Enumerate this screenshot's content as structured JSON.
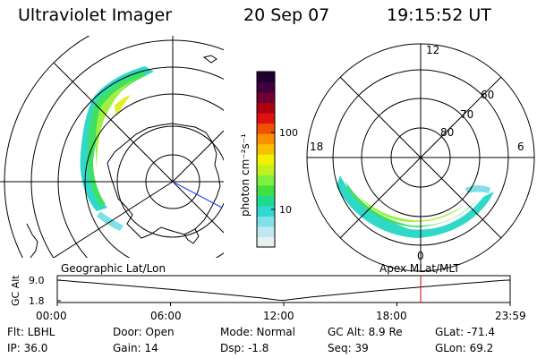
{
  "header": {
    "title": "Ultraviolet Imager",
    "date": "20 Sep 07",
    "time": "19:15:52 UT"
  },
  "colorbar": {
    "unit_label": "photon cm⁻²s⁻¹",
    "tick_labels": [
      "100",
      "10"
    ],
    "colors": [
      "#e8f0f0",
      "#c0e8f0",
      "#80e0e8",
      "#30d8d0",
      "#20d890",
      "#40e040",
      "#80f040",
      "#c0f020",
      "#f0f000",
      "#f8c000",
      "#f89000",
      "#f05000",
      "#e01010",
      "#b00010",
      "#700030",
      "#400040",
      "#200030"
    ]
  },
  "left_map": {
    "label": "Geographic Lat/Lon"
  },
  "right_map": {
    "label": "Apex  MLat/MLT",
    "mlt_labels": {
      "top": "12",
      "bottom": "0",
      "left": "18",
      "right": "6"
    },
    "lat_labels": [
      "60",
      "70",
      "80"
    ]
  },
  "altitude_plot": {
    "ylabel": "GC Alt",
    "ytick_top": "9.0",
    "ytick_bottom": "1.8",
    "time_ticks": [
      "00:00",
      "06:00",
      "12:00",
      "18:00",
      "23:59"
    ],
    "marker_time_hours": 19.26,
    "line_color": "#000000",
    "marker_color": "#cc0000"
  },
  "footer": {
    "row1": {
      "flt": "Flt: LBHL",
      "door": "Door: Open",
      "mode": "Mode: Normal",
      "gc_alt": "GC Alt:  8.9 Re",
      "glat": "GLat:  -71.4"
    },
    "row2": {
      "ip": "IP:  36.0",
      "gain": "Gain: 14",
      "dsp": "Dsp:    -1.8",
      "seq": "Seq:  39",
      "glon": "GLon:   69.2"
    }
  }
}
